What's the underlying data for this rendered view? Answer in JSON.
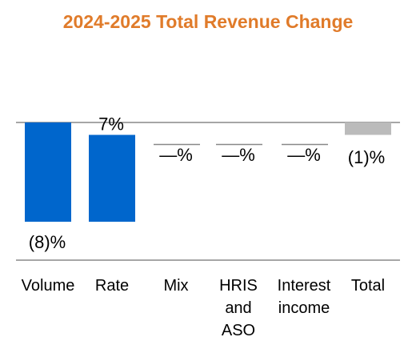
{
  "title": "2024-2025 Total Revenue Change",
  "colors": {
    "title": "#E07B2A",
    "bar": "#0066CC",
    "total_bar": "#BBBBBB",
    "baseline": "#888888",
    "text": "#000000"
  },
  "chart_data": {
    "type": "bar",
    "title": "2024-2025 Total Revenue Change",
    "categories": [
      [
        "Volume"
      ],
      [
        "Rate"
      ],
      [
        "Mix"
      ],
      [
        "HRIS",
        "and",
        "ASO"
      ],
      [
        "Interest",
        "income"
      ],
      [
        "Total"
      ]
    ],
    "values": [
      -8,
      7,
      0,
      0,
      0,
      -1
    ],
    "data_labels": [
      "(8)%",
      "7%",
      "—%",
      "—%",
      "—%",
      "(1)%"
    ],
    "bar_kind": [
      "change",
      "change",
      "change",
      "change",
      "change",
      "total"
    ],
    "xlabel": "",
    "ylabel": "",
    "grid": false,
    "legend": "none"
  }
}
